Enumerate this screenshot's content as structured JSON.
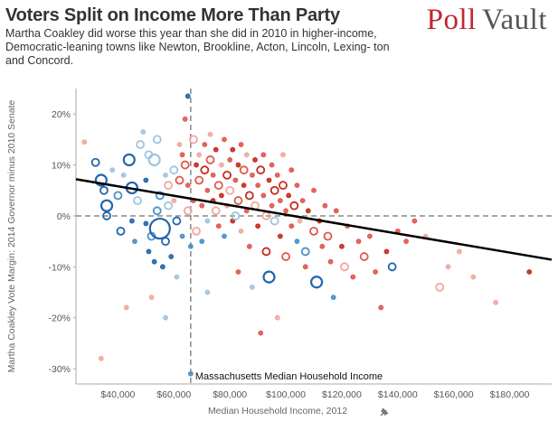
{
  "header": {
    "title": "Voters Split on Income More Than Party",
    "subtitle": "Martha Coakley did worse this year than she did in 2010 in higher-income, Democratic-leaning towns like Newton, Brookline, Acton, Lincoln, Lexing- ton and Concord.",
    "logo_part1": "Poll",
    "logo_part2": "Vault"
  },
  "colors": {
    "republican": "#d7301f",
    "democrat": "#2b7bb9",
    "neutral": "#b0b0b0",
    "trend": "#000000",
    "reference": "#888888"
  },
  "chart_data": {
    "type": "scatter",
    "xlabel": "Median Household Income, 2012",
    "ylabel": "Martha Coakley Vote Margin: 2014 Governor minus 2010 Senate",
    "xlim": [
      25000,
      195000
    ],
    "ylim": [
      -33,
      25
    ],
    "x_ticks": [
      40000,
      60000,
      80000,
      100000,
      120000,
      140000,
      160000,
      180000
    ],
    "x_tick_labels": [
      "$40,000",
      "$60,000",
      "$80,000",
      "$100,000",
      "$120,000",
      "$140,000",
      "$160,000",
      "$180,000"
    ],
    "y_ticks": [
      20,
      10,
      0,
      -10,
      -20,
      -30
    ],
    "y_tick_labels": [
      "20%",
      "10%",
      "0%",
      "-10%",
      "-20%",
      "-30%"
    ],
    "reference_line": {
      "axis": "x",
      "value": 66000,
      "label": "Massachusetts Median Household Income"
    },
    "zero_line": 0,
    "trend": {
      "x": [
        25000,
        195000
      ],
      "y": [
        7.2,
        -8.6
      ]
    },
    "points": [
      {
        "x": 28000,
        "y": 14.5,
        "c": "lr",
        "s": 1
      },
      {
        "x": 32000,
        "y": 10.5,
        "c": "db",
        "s": 2
      },
      {
        "x": 34000,
        "y": 7,
        "c": "db",
        "s": 3
      },
      {
        "x": 35000,
        "y": 5,
        "c": "db",
        "s": 2
      },
      {
        "x": 36000,
        "y": 2,
        "c": "db",
        "s": 3
      },
      {
        "x": 36000,
        "y": 0,
        "c": "db",
        "s": 2
      },
      {
        "x": 38000,
        "y": 9,
        "c": "lb",
        "s": 1
      },
      {
        "x": 40000,
        "y": 4,
        "c": "mb",
        "s": 2
      },
      {
        "x": 41000,
        "y": -3,
        "c": "db",
        "s": 2
      },
      {
        "x": 42000,
        "y": 8,
        "c": "lb",
        "s": 1
      },
      {
        "x": 44000,
        "y": 11,
        "c": "db",
        "s": 3
      },
      {
        "x": 45000,
        "y": 5.5,
        "c": "db",
        "s": 3
      },
      {
        "x": 45000,
        "y": -1,
        "c": "db",
        "s": 1
      },
      {
        "x": 46000,
        "y": -5,
        "c": "mb",
        "s": 1
      },
      {
        "x": 47000,
        "y": 3,
        "c": "lb",
        "s": 2
      },
      {
        "x": 48000,
        "y": 14,
        "c": "lb",
        "s": 2
      },
      {
        "x": 49000,
        "y": 16.5,
        "c": "lb",
        "s": 1
      },
      {
        "x": 50000,
        "y": 7,
        "c": "db",
        "s": 1
      },
      {
        "x": 50000,
        "y": -1.5,
        "c": "db",
        "s": 1
      },
      {
        "x": 51000,
        "y": -7,
        "c": "db",
        "s": 1
      },
      {
        "x": 51000,
        "y": 12,
        "c": "lb",
        "s": 2
      },
      {
        "x": 52000,
        "y": -4,
        "c": "mb",
        "s": 2
      },
      {
        "x": 52000,
        "y": -16,
        "c": "lr",
        "s": 1
      },
      {
        "x": 53000,
        "y": 11,
        "c": "lb",
        "s": 3
      },
      {
        "x": 53000,
        "y": -9,
        "c": "db",
        "s": 1
      },
      {
        "x": 54000,
        "y": 15,
        "c": "lb",
        "s": 2
      },
      {
        "x": 54000,
        "y": 1,
        "c": "mb",
        "s": 2
      },
      {
        "x": 55000,
        "y": 4,
        "c": "mb",
        "s": 2
      },
      {
        "x": 55000,
        "y": -2.5,
        "c": "db",
        "s": 4
      },
      {
        "x": 56000,
        "y": -10,
        "c": "db",
        "s": 1
      },
      {
        "x": 57000,
        "y": 8,
        "c": "lb",
        "s": 1
      },
      {
        "x": 57000,
        "y": -5,
        "c": "db",
        "s": 2
      },
      {
        "x": 58000,
        "y": 6,
        "c": "lr",
        "s": 2
      },
      {
        "x": 58000,
        "y": 2,
        "c": "lb",
        "s": 2
      },
      {
        "x": 59000,
        "y": -8,
        "c": "db",
        "s": 1
      },
      {
        "x": 60000,
        "y": 9,
        "c": "lb",
        "s": 2
      },
      {
        "x": 60000,
        "y": 3,
        "c": "lr",
        "s": 1
      },
      {
        "x": 61000,
        "y": -1,
        "c": "db",
        "s": 2
      },
      {
        "x": 61000,
        "y": -12,
        "c": "lb",
        "s": 1
      },
      {
        "x": 62000,
        "y": 14,
        "c": "lr",
        "s": 1
      },
      {
        "x": 62000,
        "y": 7,
        "c": "mr",
        "s": 2
      },
      {
        "x": 63000,
        "y": 12,
        "c": "mr",
        "s": 1
      },
      {
        "x": 63000,
        "y": -4,
        "c": "mb",
        "s": 1
      },
      {
        "x": 64000,
        "y": 19,
        "c": "mr",
        "s": 1
      },
      {
        "x": 64000,
        "y": 10,
        "c": "mr",
        "s": 2
      },
      {
        "x": 65000,
        "y": 23.5,
        "c": "db",
        "s": 1
      },
      {
        "x": 65000,
        "y": 6,
        "c": "mr",
        "s": 1
      },
      {
        "x": 65000,
        "y": 1,
        "c": "lr",
        "s": 2
      },
      {
        "x": 66000,
        "y": -6,
        "c": "mb",
        "s": 1
      },
      {
        "x": 66000,
        "y": -31,
        "c": "mb",
        "s": 1
      },
      {
        "x": 67000,
        "y": 15,
        "c": "lr",
        "s": 2
      },
      {
        "x": 67000,
        "y": 3,
        "c": "mr",
        "s": 1
      },
      {
        "x": 68000,
        "y": 10,
        "c": "dr",
        "s": 1
      },
      {
        "x": 68000,
        "y": -3,
        "c": "lr",
        "s": 2
      },
      {
        "x": 69000,
        "y": 7,
        "c": "mr",
        "s": 2
      },
      {
        "x": 69000,
        "y": 12,
        "c": "lr",
        "s": 1
      },
      {
        "x": 70000,
        "y": 2,
        "c": "mr",
        "s": 1
      },
      {
        "x": 70000,
        "y": -5,
        "c": "mb",
        "s": 1
      },
      {
        "x": 71000,
        "y": 9,
        "c": "dr",
        "s": 2
      },
      {
        "x": 71000,
        "y": 14,
        "c": "mr",
        "s": 1
      },
      {
        "x": 72000,
        "y": 5,
        "c": "mr",
        "s": 1
      },
      {
        "x": 72000,
        "y": -1,
        "c": "lb",
        "s": 1
      },
      {
        "x": 73000,
        "y": 16,
        "c": "lr",
        "s": 1
      },
      {
        "x": 73000,
        "y": 11,
        "c": "mr",
        "s": 2
      },
      {
        "x": 74000,
        "y": 3,
        "c": "dr",
        "s": 1
      },
      {
        "x": 74000,
        "y": 8,
        "c": "mr",
        "s": 1
      },
      {
        "x": 75000,
        "y": 1,
        "c": "lr",
        "s": 2
      },
      {
        "x": 75000,
        "y": 13,
        "c": "dr",
        "s": 1
      },
      {
        "x": 76000,
        "y": 6,
        "c": "mr",
        "s": 2
      },
      {
        "x": 76000,
        "y": -2,
        "c": "mr",
        "s": 1
      },
      {
        "x": 77000,
        "y": 10,
        "c": "lr",
        "s": 1
      },
      {
        "x": 77000,
        "y": 4,
        "c": "dr",
        "s": 1
      },
      {
        "x": 78000,
        "y": 15,
        "c": "mr",
        "s": 1
      },
      {
        "x": 78000,
        "y": -4,
        "c": "mb",
        "s": 1
      },
      {
        "x": 79000,
        "y": 8,
        "c": "dr",
        "s": 2
      },
      {
        "x": 79000,
        "y": 2,
        "c": "lr",
        "s": 1
      },
      {
        "x": 80000,
        "y": 11,
        "c": "mr",
        "s": 1
      },
      {
        "x": 80000,
        "y": 5,
        "c": "lr",
        "s": 2
      },
      {
        "x": 81000,
        "y": -1,
        "c": "dr",
        "s": 1
      },
      {
        "x": 81000,
        "y": 13,
        "c": "dr",
        "s": 1
      },
      {
        "x": 82000,
        "y": 7,
        "c": "mr",
        "s": 1
      },
      {
        "x": 82000,
        "y": 0,
        "c": "lb",
        "s": 2
      },
      {
        "x": 83000,
        "y": 10,
        "c": "dr",
        "s": 1
      },
      {
        "x": 83000,
        "y": 3,
        "c": "mr",
        "s": 2
      },
      {
        "x": 84000,
        "y": 14,
        "c": "mr",
        "s": 1
      },
      {
        "x": 84000,
        "y": -3,
        "c": "lr",
        "s": 1
      },
      {
        "x": 85000,
        "y": 6,
        "c": "dr",
        "s": 1
      },
      {
        "x": 85000,
        "y": 9,
        "c": "mr",
        "s": 2
      },
      {
        "x": 86000,
        "y": 1,
        "c": "mr",
        "s": 1
      },
      {
        "x": 86000,
        "y": 12,
        "c": "lr",
        "s": 1
      },
      {
        "x": 87000,
        "y": 4,
        "c": "dr",
        "s": 2
      },
      {
        "x": 87000,
        "y": -6,
        "c": "mr",
        "s": 1
      },
      {
        "x": 88000,
        "y": 8,
        "c": "mr",
        "s": 1
      },
      {
        "x": 88000,
        "y": -14,
        "c": "lb",
        "s": 1
      },
      {
        "x": 89000,
        "y": 11,
        "c": "dr",
        "s": 1
      },
      {
        "x": 89000,
        "y": 2,
        "c": "lr",
        "s": 2
      },
      {
        "x": 90000,
        "y": 6,
        "c": "mr",
        "s": 1
      },
      {
        "x": 90000,
        "y": -2,
        "c": "dr",
        "s": 1
      },
      {
        "x": 91000,
        "y": 9,
        "c": "dr",
        "s": 2
      },
      {
        "x": 91000,
        "y": -23,
        "c": "mr",
        "s": 1
      },
      {
        "x": 92000,
        "y": 4,
        "c": "mr",
        "s": 1
      },
      {
        "x": 92000,
        "y": 12,
        "c": "mr",
        "s": 1
      },
      {
        "x": 93000,
        "y": 0,
        "c": "lr",
        "s": 2
      },
      {
        "x": 93000,
        "y": -7,
        "c": "dr",
        "s": 2
      },
      {
        "x": 94000,
        "y": 7,
        "c": "dr",
        "s": 1
      },
      {
        "x": 94000,
        "y": -12,
        "c": "db",
        "s": 3
      },
      {
        "x": 95000,
        "y": 10,
        "c": "mr",
        "s": 1
      },
      {
        "x": 95000,
        "y": 2,
        "c": "mr",
        "s": 1
      },
      {
        "x": 96000,
        "y": 5,
        "c": "dr",
        "s": 2
      },
      {
        "x": 96000,
        "y": -1,
        "c": "lb",
        "s": 2
      },
      {
        "x": 97000,
        "y": -20,
        "c": "lr",
        "s": 1
      },
      {
        "x": 97000,
        "y": 8,
        "c": "mr",
        "s": 1
      },
      {
        "x": 98000,
        "y": 3,
        "c": "mr",
        "s": 1
      },
      {
        "x": 98000,
        "y": -4,
        "c": "dr",
        "s": 1
      },
      {
        "x": 99000,
        "y": 6,
        "c": "dr",
        "s": 2
      },
      {
        "x": 99000,
        "y": 12,
        "c": "lr",
        "s": 1
      },
      {
        "x": 100000,
        "y": 1,
        "c": "mr",
        "s": 1
      },
      {
        "x": 100000,
        "y": -8,
        "c": "mr",
        "s": 2
      },
      {
        "x": 101000,
        "y": 4,
        "c": "dr",
        "s": 1
      },
      {
        "x": 102000,
        "y": -2,
        "c": "mr",
        "s": 1
      },
      {
        "x": 102000,
        "y": 9,
        "c": "mr",
        "s": 1
      },
      {
        "x": 103000,
        "y": 2,
        "c": "dr",
        "s": 2
      },
      {
        "x": 104000,
        "y": -5,
        "c": "mb",
        "s": 1
      },
      {
        "x": 104000,
        "y": 6,
        "c": "mr",
        "s": 1
      },
      {
        "x": 105000,
        "y": -1,
        "c": "lr",
        "s": 1
      },
      {
        "x": 106000,
        "y": 3,
        "c": "mr",
        "s": 1
      },
      {
        "x": 107000,
        "y": -7,
        "c": "mb",
        "s": 2
      },
      {
        "x": 107000,
        "y": -10,
        "c": "mr",
        "s": 1
      },
      {
        "x": 108000,
        "y": 1,
        "c": "dr",
        "s": 1
      },
      {
        "x": 110000,
        "y": -3,
        "c": "mr",
        "s": 2
      },
      {
        "x": 110000,
        "y": 5,
        "c": "mr",
        "s": 1
      },
      {
        "x": 111000,
        "y": -13,
        "c": "db",
        "s": 3
      },
      {
        "x": 112000,
        "y": -1,
        "c": "dr",
        "s": 1
      },
      {
        "x": 113000,
        "y": -6,
        "c": "mr",
        "s": 1
      },
      {
        "x": 114000,
        "y": 2,
        "c": "mr",
        "s": 1
      },
      {
        "x": 115000,
        "y": -4,
        "c": "mr",
        "s": 2
      },
      {
        "x": 116000,
        "y": -9,
        "c": "mr",
        "s": 1
      },
      {
        "x": 117000,
        "y": -16,
        "c": "mb",
        "s": 1
      },
      {
        "x": 118000,
        "y": 1,
        "c": "mr",
        "s": 1
      },
      {
        "x": 120000,
        "y": -6,
        "c": "dr",
        "s": 1
      },
      {
        "x": 121000,
        "y": -10,
        "c": "lr",
        "s": 2
      },
      {
        "x": 122000,
        "y": -2,
        "c": "mr",
        "s": 1
      },
      {
        "x": 124000,
        "y": -12,
        "c": "mr",
        "s": 1
      },
      {
        "x": 126000,
        "y": -5,
        "c": "mr",
        "s": 1
      },
      {
        "x": 128000,
        "y": -8,
        "c": "mr",
        "s": 2
      },
      {
        "x": 130000,
        "y": -4,
        "c": "mr",
        "s": 1
      },
      {
        "x": 132000,
        "y": -11,
        "c": "mr",
        "s": 1
      },
      {
        "x": 134000,
        "y": -18,
        "c": "mr",
        "s": 1
      },
      {
        "x": 136000,
        "y": -7,
        "c": "dr",
        "s": 1
      },
      {
        "x": 138000,
        "y": -10,
        "c": "db",
        "s": 2
      },
      {
        "x": 140000,
        "y": -3,
        "c": "mr",
        "s": 1
      },
      {
        "x": 143000,
        "y": -5,
        "c": "mr",
        "s": 1
      },
      {
        "x": 146000,
        "y": -1,
        "c": "mr",
        "s": 1
      },
      {
        "x": 150000,
        "y": -4,
        "c": "lr",
        "s": 1
      },
      {
        "x": 155000,
        "y": -14,
        "c": "lr",
        "s": 2
      },
      {
        "x": 158000,
        "y": -10,
        "c": "lr",
        "s": 1
      },
      {
        "x": 162000,
        "y": -7,
        "c": "lr",
        "s": 1
      },
      {
        "x": 167000,
        "y": -12,
        "c": "lr",
        "s": 1
      },
      {
        "x": 175000,
        "y": -17,
        "c": "lr",
        "s": 1
      },
      {
        "x": 187000,
        "y": -11,
        "c": "dr",
        "s": 1
      },
      {
        "x": 34000,
        "y": -28,
        "c": "lr",
        "s": 1
      },
      {
        "x": 57000,
        "y": -20,
        "c": "lb",
        "s": 1
      },
      {
        "x": 72000,
        "y": -15,
        "c": "lb",
        "s": 1
      },
      {
        "x": 83000,
        "y": -11,
        "c": "mr",
        "s": 1
      },
      {
        "x": 43000,
        "y": -18,
        "c": "lr",
        "s": 1
      }
    ]
  }
}
